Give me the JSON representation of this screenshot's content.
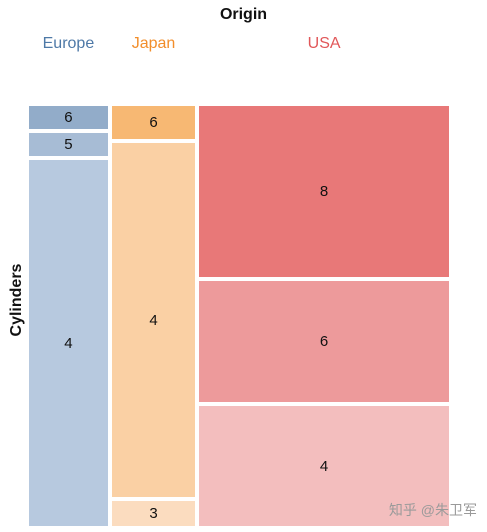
{
  "chart_data": {
    "type": "mosaic",
    "title": "Origin",
    "ylabel": "Cylinders",
    "origins": [
      {
        "name": "Europe",
        "color": "#4e79a7",
        "width_share": 0.1914,
        "segments": [
          {
            "label": "6",
            "share": 0.0562,
            "color": "#92acc9"
          },
          {
            "label": "5",
            "share": 0.0562,
            "color": "#a7bcd5"
          },
          {
            "label": "4",
            "share": 0.8876,
            "color": "#b7c9df"
          }
        ]
      },
      {
        "name": "Japan",
        "color": "#f28e2b",
        "width_share": 0.2023,
        "segments": [
          {
            "label": "6",
            "share": 0.08,
            "color": "#f7b873"
          },
          {
            "label": "4",
            "share": 0.86,
            "color": "#fad0a4"
          },
          {
            "label": "3",
            "share": 0.06,
            "color": "#fbdcbf"
          }
        ]
      },
      {
        "name": "USA",
        "color": "#e15759",
        "width_share": 0.6063,
        "segments": [
          {
            "label": "8",
            "share": 0.4145,
            "color": "#e87878"
          },
          {
            "label": "6",
            "share": 0.2945,
            "color": "#ed9a9b"
          },
          {
            "label": "4",
            "share": 0.291,
            "color": "#f3bebe"
          }
        ]
      }
    ]
  },
  "watermark": "知乎 @朱卫军"
}
